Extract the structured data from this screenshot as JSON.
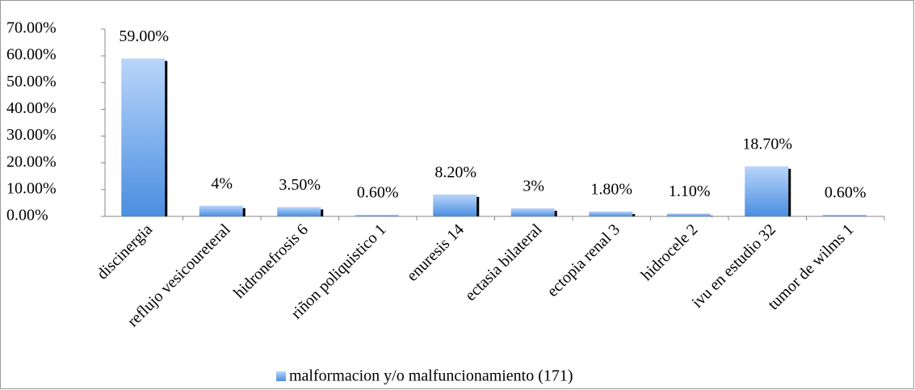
{
  "chart_data": {
    "type": "bar",
    "categories": [
      "discinergia",
      "reflujo vesicoureteral",
      "hidronefrosis 6",
      "riñon poliquistico 1",
      "enuresis 14",
      "ectasia bilateral",
      "ectopia renal 3",
      "hidrocele 2",
      "ivu en estudio 32",
      "tumor de wilms 1"
    ],
    "series": [
      {
        "name": "malformacion y/o malfuncionamiento (171)",
        "color": "#6fa6e8",
        "values": [
          59,
          4,
          3.5,
          0.6,
          8.2,
          3,
          1.8,
          1.1,
          18.7,
          0.6
        ],
        "value_labels": [
          "59.00%",
          "4%",
          "3.50%",
          "0.60%",
          "8.20%",
          "3%",
          "1.80%",
          "1.10%",
          "18.70%",
          "0.60%"
        ]
      }
    ],
    "ylim": [
      0,
      70
    ],
    "yticks": [
      {
        "value": 0,
        "label": "0.00%"
      },
      {
        "value": 10,
        "label": "10.00%"
      },
      {
        "value": 20,
        "label": "20.00%"
      },
      {
        "value": 30,
        "label": "30.00%"
      },
      {
        "value": 40,
        "label": "40.00%"
      },
      {
        "value": 50,
        "label": "50.00%"
      },
      {
        "value": 60,
        "label": "60.00%"
      },
      {
        "value": 70,
        "label": "70.00%"
      }
    ],
    "legend": "bottom"
  }
}
